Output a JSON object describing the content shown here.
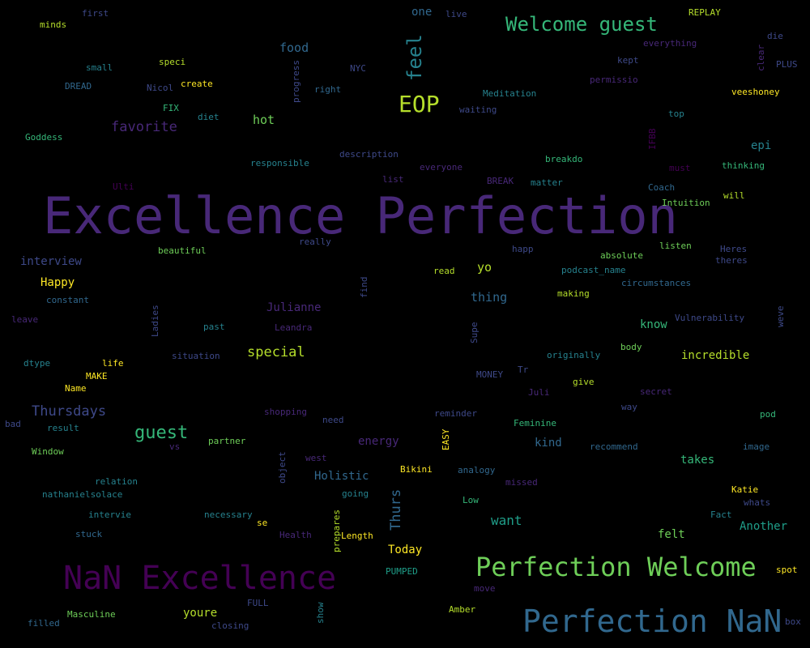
{
  "palette": {
    "background": "#000000",
    "colors": [
      "#440154",
      "#482878",
      "#3e4989",
      "#31688e",
      "#26828e",
      "#1f9e89",
      "#35b779",
      "#6ece58",
      "#b5de2b",
      "#fde725"
    ]
  },
  "words": [
    {
      "text": "Excellence Perfection",
      "color": "#482878"
    },
    {
      "text": "NaN Excellence",
      "color": "#440154"
    },
    {
      "text": "Perfection Welcome",
      "color": "#6ece58"
    },
    {
      "text": "Perfection NaN",
      "color": "#31688e"
    },
    {
      "text": "Welcome guest",
      "color": "#35b779"
    },
    {
      "text": "EOP",
      "color": "#b5de2b"
    },
    {
      "text": "feel",
      "color": "#26828e"
    },
    {
      "text": "favorite",
      "color": "#482878"
    },
    {
      "text": "guest",
      "color": "#35b779"
    },
    {
      "text": "special",
      "color": "#b5de2b"
    },
    {
      "text": "Thursdays",
      "color": "#3e4989"
    },
    {
      "text": "Thurs",
      "color": "#31688e"
    },
    {
      "text": "food",
      "color": "#31688e"
    },
    {
      "text": "hot",
      "color": "#6ece58"
    },
    {
      "text": "interview",
      "color": "#3e4989"
    },
    {
      "text": "Happy",
      "color": "#fde725"
    },
    {
      "text": "Julianne",
      "color": "#482878"
    },
    {
      "text": "thing",
      "color": "#31688e"
    },
    {
      "text": "incredible",
      "color": "#b5de2b"
    },
    {
      "text": "know",
      "color": "#35b779"
    },
    {
      "text": "yo",
      "color": "#b5de2b"
    },
    {
      "text": "Holistic",
      "color": "#31688e"
    },
    {
      "text": "energy",
      "color": "#482878"
    },
    {
      "text": "kind",
      "color": "#31688e"
    },
    {
      "text": "want",
      "color": "#1f9e89"
    },
    {
      "text": "takes",
      "color": "#35b779"
    },
    {
      "text": "felt",
      "color": "#6ece58"
    },
    {
      "text": "Another",
      "color": "#1f9e89"
    },
    {
      "text": "Today",
      "color": "#fde725"
    },
    {
      "text": "youre",
      "color": "#b5de2b"
    },
    {
      "text": "epi",
      "color": "#26828e"
    },
    {
      "text": "one",
      "color": "#31688e"
    },
    {
      "text": "first",
      "color": "#3e4989"
    },
    {
      "text": "minds",
      "color": "#b5de2b"
    },
    {
      "text": "live",
      "color": "#3e4989"
    },
    {
      "text": "REPLAY",
      "color": "#b5de2b"
    },
    {
      "text": "everything",
      "color": "#482878"
    },
    {
      "text": "die",
      "color": "#3e4989"
    },
    {
      "text": "clear",
      "color": "#482878"
    },
    {
      "text": "PLUS",
      "color": "#3e4989"
    },
    {
      "text": "small",
      "color": "#26828e"
    },
    {
      "text": "speci",
      "color": "#b5de2b"
    },
    {
      "text": "NYC",
      "color": "#3e4989"
    },
    {
      "text": "progress",
      "color": "#3e4989"
    },
    {
      "text": "kept",
      "color": "#3e4989"
    },
    {
      "text": "permissio",
      "color": "#482878"
    },
    {
      "text": "veeshoney",
      "color": "#fde725"
    },
    {
      "text": "DREAD",
      "color": "#31688e"
    },
    {
      "text": "Nicol",
      "color": "#3e4989"
    },
    {
      "text": "create",
      "color": "#fde725"
    },
    {
      "text": "right",
      "color": "#31688e"
    },
    {
      "text": "Meditation",
      "color": "#26828e"
    },
    {
      "text": "FIX",
      "color": "#35b779"
    },
    {
      "text": "diet",
      "color": "#26828e"
    },
    {
      "text": "waiting",
      "color": "#3e4989"
    },
    {
      "text": "top",
      "color": "#26828e"
    },
    {
      "text": "Goddess",
      "color": "#35b779"
    },
    {
      "text": "IFBB",
      "color": "#440154"
    },
    {
      "text": "description",
      "color": "#3e4989"
    },
    {
      "text": "breakdo",
      "color": "#35b779"
    },
    {
      "text": "responsible",
      "color": "#26828e"
    },
    {
      "text": "everyone",
      "color": "#482878"
    },
    {
      "text": "must",
      "color": "#440154"
    },
    {
      "text": "thinking",
      "color": "#35b779"
    },
    {
      "text": "list",
      "color": "#482878"
    },
    {
      "text": "BREAK",
      "color": "#482878"
    },
    {
      "text": "matter",
      "color": "#26828e"
    },
    {
      "text": "Ulti",
      "color": "#440154"
    },
    {
      "text": "Coach",
      "color": "#31688e"
    },
    {
      "text": "will",
      "color": "#b5de2b"
    },
    {
      "text": "Intuition",
      "color": "#6ece58"
    },
    {
      "text": "really",
      "color": "#3e4989"
    },
    {
      "text": "beautiful",
      "color": "#6ece58"
    },
    {
      "text": "happ",
      "color": "#3e4989"
    },
    {
      "text": "absolute",
      "color": "#6ece58"
    },
    {
      "text": "listen",
      "color": "#6ece58"
    },
    {
      "text": "Heres",
      "color": "#3e4989"
    },
    {
      "text": "theres",
      "color": "#3e4989"
    },
    {
      "text": "read",
      "color": "#b5de2b"
    },
    {
      "text": "podcast_name",
      "color": "#26828e"
    },
    {
      "text": "find",
      "color": "#3e4989"
    },
    {
      "text": "circumstances",
      "color": "#31688e"
    },
    {
      "text": "constant",
      "color": "#31688e"
    },
    {
      "text": "making",
      "color": "#b5de2b"
    },
    {
      "text": "Ladies",
      "color": "#3e4989"
    },
    {
      "text": "leave",
      "color": "#482878"
    },
    {
      "text": "past",
      "color": "#26828e"
    },
    {
      "text": "Leandra",
      "color": "#482878"
    },
    {
      "text": "Supe",
      "color": "#3e4989"
    },
    {
      "text": "Vulnerability",
      "color": "#3e4989"
    },
    {
      "text": "weve",
      "color": "#3e4989"
    },
    {
      "text": "body",
      "color": "#6ece58"
    },
    {
      "text": "situation",
      "color": "#3e4989"
    },
    {
      "text": "originally",
      "color": "#26828e"
    },
    {
      "text": "dtype",
      "color": "#26828e"
    },
    {
      "text": "life",
      "color": "#fde725"
    },
    {
      "text": "Tr",
      "color": "#3e4989"
    },
    {
      "text": "MAKE",
      "color": "#fde725"
    },
    {
      "text": "MONEY",
      "color": "#3e4989"
    },
    {
      "text": "give",
      "color": "#b5de2b"
    },
    {
      "text": "Name",
      "color": "#fde725"
    },
    {
      "text": "Juli",
      "color": "#482878"
    },
    {
      "text": "secret",
      "color": "#482878"
    },
    {
      "text": "way",
      "color": "#3e4989"
    },
    {
      "text": "pod",
      "color": "#35b779"
    },
    {
      "text": "shopping",
      "color": "#482878"
    },
    {
      "text": "need",
      "color": "#3e4989"
    },
    {
      "text": "reminder",
      "color": "#3e4989"
    },
    {
      "text": "bad",
      "color": "#3e4989"
    },
    {
      "text": "result",
      "color": "#26828e"
    },
    {
      "text": "Feminine",
      "color": "#35b779"
    },
    {
      "text": "EASY",
      "color": "#fde725"
    },
    {
      "text": "partner",
      "color": "#6ece58"
    },
    {
      "text": "vs",
      "color": "#482878"
    },
    {
      "text": "recommend",
      "color": "#31688e"
    },
    {
      "text": "image",
      "color": "#31688e"
    },
    {
      "text": "Window",
      "color": "#6ece58"
    },
    {
      "text": "object",
      "color": "#3e4989"
    },
    {
      "text": "west",
      "color": "#482878"
    },
    {
      "text": "Bikini",
      "color": "#fde725"
    },
    {
      "text": "analogy",
      "color": "#31688e"
    },
    {
      "text": "relation",
      "color": "#26828e"
    },
    {
      "text": "missed",
      "color": "#482878"
    },
    {
      "text": "nathanielsolace",
      "color": "#26828e"
    },
    {
      "text": "going",
      "color": "#26828e"
    },
    {
      "text": "Katie",
      "color": "#fde725"
    },
    {
      "text": "Low",
      "color": "#35b779"
    },
    {
      "text": "whats",
      "color": "#3e4989"
    },
    {
      "text": "intervie",
      "color": "#26828e"
    },
    {
      "text": "necessary",
      "color": "#26828e"
    },
    {
      "text": "Fact",
      "color": "#26828e"
    },
    {
      "text": "prepares",
      "color": "#b5de2b"
    },
    {
      "text": "se",
      "color": "#fde725"
    },
    {
      "text": "stuck",
      "color": "#31688e"
    },
    {
      "text": "Health",
      "color": "#482878"
    },
    {
      "text": "Length",
      "color": "#fde725"
    },
    {
      "text": "PUMPED",
      "color": "#1f9e89"
    },
    {
      "text": "spot",
      "color": "#fde725"
    },
    {
      "text": "move",
      "color": "#482878"
    },
    {
      "text": "FULL",
      "color": "#3e4989"
    },
    {
      "text": "show",
      "color": "#26828e"
    },
    {
      "text": "Amber",
      "color": "#b5de2b"
    },
    {
      "text": "Masculine",
      "color": "#6ece58"
    },
    {
      "text": "filled",
      "color": "#31688e"
    },
    {
      "text": "closing",
      "color": "#3e4989"
    },
    {
      "text": "box",
      "color": "#3e4989"
    }
  ]
}
